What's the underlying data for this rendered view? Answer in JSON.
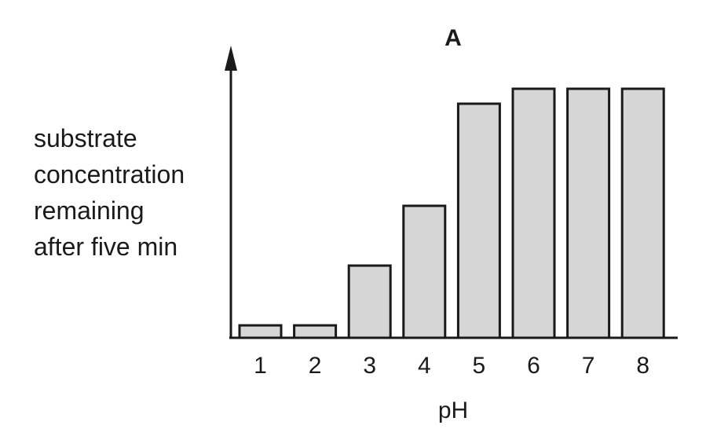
{
  "chart_data": {
    "type": "bar",
    "title": "A",
    "xlabel": "pH",
    "ylabel_lines": [
      "substrate",
      "concentration",
      "remaining",
      "after five min"
    ],
    "categories": [
      "1",
      "2",
      "3",
      "4",
      "5",
      "6",
      "7",
      "8"
    ],
    "values": [
      0.05,
      0.05,
      0.29,
      0.53,
      0.94,
      1.0,
      1.0,
      1.0
    ],
    "ylim": [
      0,
      1.0
    ],
    "grid": false,
    "bar_color": "#d6d6d6",
    "edge_color": "#1a1a1a"
  }
}
